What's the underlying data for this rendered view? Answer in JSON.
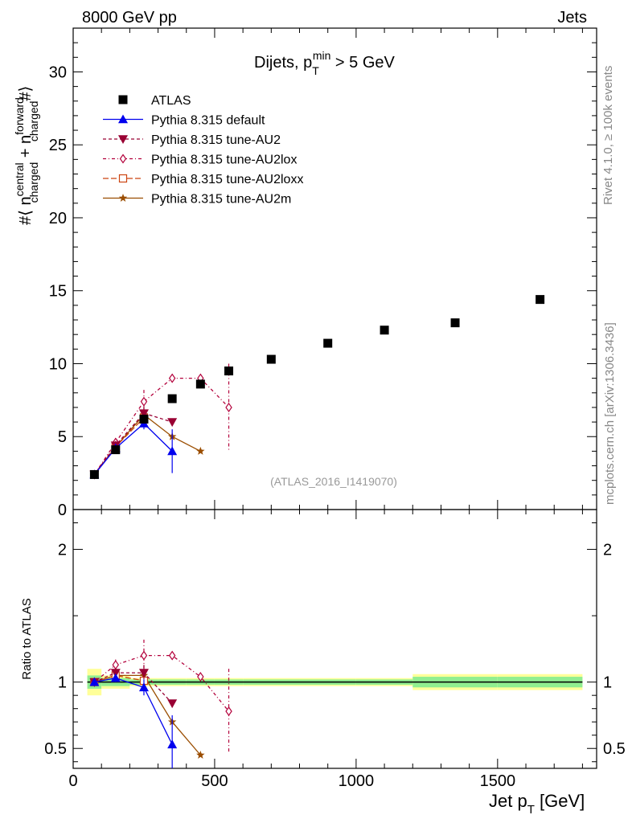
{
  "header": {
    "left": "8000 GeV pp",
    "right": "Jets",
    "rivet": "Rivet 4.1.0, ≥ 100k events",
    "mcplots": "mcplots.cern.ch [arXiv:1306.3436]",
    "analysis": "(ATLAS_2016_I1419070)"
  },
  "main_plot": {
    "title_main": "Dijets, p",
    "title_sup": "min",
    "title_sub": "T",
    "title_tail": " > 5 GeV",
    "ylabel": "#⟨ n central charged + n forward charged #⟩",
    "ylabel_parts": {
      "pre": "#⟨ n",
      "s1": "central",
      "b1": "charged",
      "mid": " + n",
      "s2": "forward",
      "b2": "charged",
      "post": "#⟩"
    }
  },
  "ratio_plot": {
    "ylabel": "Ratio to ATLAS"
  },
  "xaxis": {
    "label_main": "Jet p",
    "label_sub": "T",
    "label_tail": " [GeV]"
  },
  "colors": {
    "ATLAS": "#000000",
    "default": "#0000ee",
    "AU2": "#990033",
    "AU2lox": "#b3003b",
    "AU2loxx": "#cc4411",
    "AU2m": "#9a4d00",
    "band_inner": "#90ee90",
    "band_outer": "#ffff99"
  },
  "chart_data": [
    {
      "type": "scatter",
      "panel": "main",
      "xlim": [
        0,
        1850
      ],
      "ylim": [
        0,
        33
      ],
      "yticks": [
        0,
        5,
        10,
        15,
        20,
        25,
        30
      ],
      "xticks": [
        0,
        500,
        1000,
        1500
      ],
      "legend_position": "top-left",
      "series": [
        {
          "key": "ATLAS",
          "name": "ATLAS",
          "marker": "square",
          "line": "none",
          "x": [
            75,
            150,
            250,
            350,
            450,
            550,
            700,
            900,
            1100,
            1350,
            1650
          ],
          "y": [
            2.4,
            4.1,
            6.2,
            7.6,
            8.6,
            9.5,
            10.3,
            11.4,
            12.3,
            12.8,
            14.4
          ]
        },
        {
          "key": "default",
          "name": "Pythia 8.315 default",
          "marker": "triangle-up",
          "line": "solid",
          "x": [
            75,
            150,
            250,
            350
          ],
          "y": [
            2.4,
            4.2,
            5.9,
            4.0
          ],
          "err": [
            0.1,
            0.2,
            0.4,
            1.5
          ]
        },
        {
          "key": "AU2",
          "name": "Pythia 8.315 tune-AU2",
          "marker": "triangle-down",
          "line": "dash",
          "x": [
            75,
            150,
            250,
            350
          ],
          "y": [
            2.4,
            4.4,
            6.6,
            6.0
          ],
          "err": [
            0.1,
            0.3,
            0.5,
            0
          ]
        },
        {
          "key": "AU2lox",
          "name": "Pythia 8.315 tune-AU2lox",
          "marker": "diamond-open",
          "line": "dashdot",
          "x": [
            75,
            150,
            250,
            350,
            450,
            550
          ],
          "y": [
            2.4,
            4.6,
            7.4,
            9.0,
            9.0,
            7.0
          ],
          "err": [
            0.1,
            0.3,
            0.8,
            0,
            0,
            3.0
          ]
        },
        {
          "key": "AU2loxx",
          "name": "Pythia 8.315 tune-AU2loxx",
          "marker": "square-open",
          "line": "longdash",
          "x": [
            75,
            150,
            250
          ],
          "y": [
            2.4,
            4.3,
            6.3
          ],
          "err": [
            0.1,
            0.2,
            0.3
          ]
        },
        {
          "key": "AU2m",
          "name": "Pythia 8.315 tune-AU2m",
          "marker": "star",
          "line": "solid",
          "x": [
            75,
            150,
            250,
            350,
            450
          ],
          "y": [
            2.4,
            4.3,
            6.5,
            5.0,
            4.0
          ],
          "err": [
            0.1,
            0.2,
            0.3,
            0,
            0
          ]
        }
      ]
    },
    {
      "type": "scatter",
      "panel": "ratio",
      "xlim": [
        0,
        1850
      ],
      "ylim": [
        0.35,
        2.3
      ],
      "yticks": [
        0.5,
        1,
        2
      ],
      "ytick_labels": [
        "0.5",
        "1",
        "2"
      ],
      "reference_line": 1,
      "band": {
        "x_edges": [
          50,
          100,
          200,
          300,
          400,
          500,
          600,
          800,
          1000,
          1200,
          1500,
          1800
        ],
        "inner": [
          0.05,
          0.03,
          0.02,
          0.02,
          0.02,
          0.02,
          0.02,
          0.02,
          0.02,
          0.04,
          0.04
        ],
        "outer": [
          0.1,
          0.05,
          0.03,
          0.03,
          0.03,
          0.03,
          0.03,
          0.03,
          0.03,
          0.06,
          0.06
        ]
      },
      "series": [
        {
          "key": "default",
          "x": [
            75,
            150,
            250,
            350
          ],
          "y": [
            1.0,
            1.03,
            0.96,
            0.53
          ],
          "err": [
            0.02,
            0.03,
            0.06,
            0.22
          ]
        },
        {
          "key": "AU2",
          "x": [
            75,
            150,
            250,
            350
          ],
          "y": [
            1.0,
            1.07,
            1.07,
            0.84
          ],
          "err": [
            0.02,
            0.03,
            0.06,
            0
          ]
        },
        {
          "key": "AU2lox",
          "x": [
            75,
            150,
            250,
            350,
            450,
            550
          ],
          "y": [
            1.0,
            1.13,
            1.2,
            1.2,
            1.04,
            0.78
          ],
          "err": [
            0.02,
            0.04,
            0.12,
            0,
            0,
            0.32
          ]
        },
        {
          "key": "AU2loxx",
          "x": [
            75,
            150,
            250
          ],
          "y": [
            1.0,
            1.05,
            1.01
          ],
          "err": [
            0.02,
            0.03,
            0.04
          ]
        },
        {
          "key": "AU2m",
          "x": [
            75,
            150,
            250,
            350,
            450
          ],
          "y": [
            1.0,
            1.05,
            1.05,
            0.7,
            0.45
          ],
          "err": [
            0.02,
            0.03,
            0.04,
            0,
            0
          ]
        }
      ]
    }
  ]
}
